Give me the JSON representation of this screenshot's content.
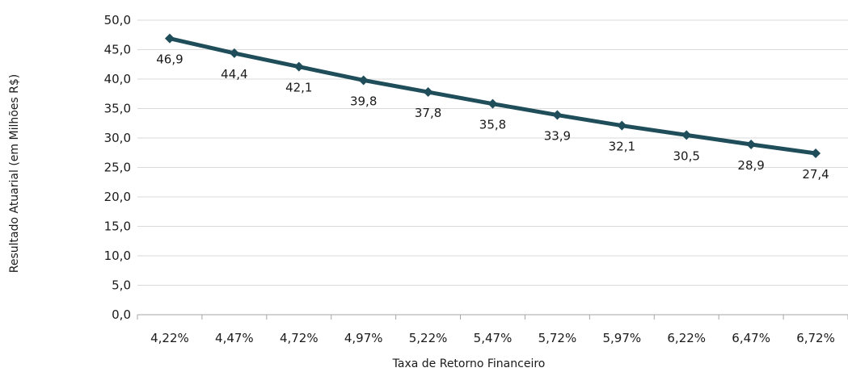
{
  "chart_data": {
    "type": "line",
    "categories": [
      "4,22%",
      "4,47%",
      "4,72%",
      "4,97%",
      "5,22%",
      "5,47%",
      "5,72%",
      "5,97%",
      "6,22%",
      "6,47%",
      "6,72%"
    ],
    "series": [
      {
        "values": [
          46.9,
          44.4,
          42.1,
          39.8,
          37.8,
          35.8,
          33.9,
          32.1,
          30.5,
          28.9,
          27.4
        ],
        "data_labels": [
          "46,9",
          "44,4",
          "42,1",
          "39,8",
          "37,8",
          "35,8",
          "33,9",
          "32,1",
          "30,5",
          "28,9",
          "27,4"
        ],
        "color": "#1f4e5a",
        "marker": "diamond"
      }
    ],
    "y_ticks": [
      "0,0",
      "5,0",
      "10,0",
      "15,0",
      "20,0",
      "25,0",
      "30,0",
      "35,0",
      "40,0",
      "45,0",
      "50,0"
    ],
    "ylim": [
      0,
      50
    ],
    "xlabel": "Taxa  de Retorno Financeiro",
    "ylabel": "Resultado  Atuarial (em Milhões R$)",
    "grid": true,
    "legend": "none"
  }
}
